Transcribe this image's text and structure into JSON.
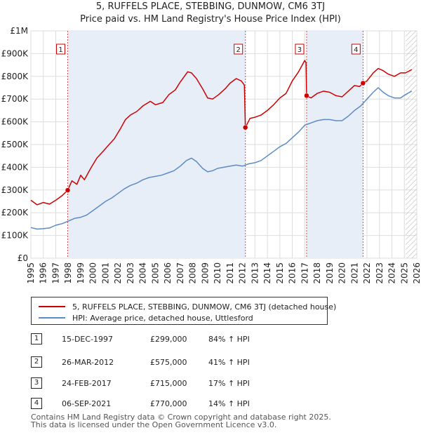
{
  "chart_data": {
    "type": "line",
    "title": "5, RUFFELS PLACE, STEBBING, DUNMOW, CM6 3TJ",
    "subtitle": "Price paid vs. HM Land Registry's House Price Index (HPI)",
    "x_range": [
      1995,
      2026
    ],
    "y_range": [
      0,
      1000000
    ],
    "x_ticks": [
      "1995",
      "1996",
      "1997",
      "1998",
      "1999",
      "2000",
      "2001",
      "2002",
      "2003",
      "2004",
      "2005",
      "2006",
      "2007",
      "2008",
      "2009",
      "2010",
      "2011",
      "2012",
      "2013",
      "2014",
      "2015",
      "2016",
      "2017",
      "2018",
      "2019",
      "2020",
      "2021",
      "2022",
      "2023",
      "2024",
      "2025",
      "2026"
    ],
    "y_ticks": [
      {
        "value": 0,
        "label": "£0"
      },
      {
        "value": 100000,
        "label": "£100K"
      },
      {
        "value": 200000,
        "label": "£200K"
      },
      {
        "value": 300000,
        "label": "£300K"
      },
      {
        "value": 400000,
        "label": "£400K"
      },
      {
        "value": 500000,
        "label": "£500K"
      },
      {
        "value": 600000,
        "label": "£600K"
      },
      {
        "value": 700000,
        "label": "£700K"
      },
      {
        "value": 800000,
        "label": "£800K"
      },
      {
        "value": 900000,
        "label": "£900K"
      },
      {
        "value": 1000000,
        "label": "£1M"
      }
    ],
    "projection_start": 2025.1,
    "series": [
      {
        "name": "5, RUFFELS PLACE, STEBBING, DUNMOW, CM6 3TJ (detached house)",
        "color": "#cc0000",
        "points": [
          [
            1995.0,
            255000
          ],
          [
            1995.5,
            235000
          ],
          [
            1996.0,
            245000
          ],
          [
            1996.5,
            238000
          ],
          [
            1997.0,
            255000
          ],
          [
            1997.5,
            275000
          ],
          [
            1997.96,
            299000
          ],
          [
            1998.3,
            340000
          ],
          [
            1998.7,
            325000
          ],
          [
            1999.0,
            365000
          ],
          [
            1999.3,
            345000
          ],
          [
            1999.8,
            395000
          ],
          [
            2000.3,
            440000
          ],
          [
            2000.8,
            470000
          ],
          [
            2001.2,
            495000
          ],
          [
            2001.7,
            525000
          ],
          [
            2002.2,
            570000
          ],
          [
            2002.6,
            610000
          ],
          [
            2003.0,
            630000
          ],
          [
            2003.5,
            645000
          ],
          [
            2004.0,
            670000
          ],
          [
            2004.6,
            690000
          ],
          [
            2005.0,
            675000
          ],
          [
            2005.6,
            685000
          ],
          [
            2006.1,
            720000
          ],
          [
            2006.6,
            740000
          ],
          [
            2007.0,
            775000
          ],
          [
            2007.6,
            820000
          ],
          [
            2007.9,
            815000
          ],
          [
            2008.3,
            790000
          ],
          [
            2008.8,
            745000
          ],
          [
            2009.2,
            705000
          ],
          [
            2009.6,
            700000
          ],
          [
            2010.1,
            720000
          ],
          [
            2010.6,
            745000
          ],
          [
            2011.0,
            770000
          ],
          [
            2011.5,
            790000
          ],
          [
            2011.9,
            780000
          ],
          [
            2012.1,
            765000
          ],
          [
            2012.15,
            760000
          ],
          [
            2012.23,
            575000
          ],
          [
            2012.6,
            615000
          ],
          [
            2013.0,
            620000
          ],
          [
            2013.5,
            630000
          ],
          [
            2014.0,
            650000
          ],
          [
            2014.5,
            675000
          ],
          [
            2015.0,
            705000
          ],
          [
            2015.5,
            725000
          ],
          [
            2016.0,
            780000
          ],
          [
            2016.5,
            820000
          ],
          [
            2016.8,
            850000
          ],
          [
            2017.0,
            870000
          ],
          [
            2017.1,
            860000
          ],
          [
            2017.15,
            715000
          ],
          [
            2017.5,
            705000
          ],
          [
            2018.0,
            725000
          ],
          [
            2018.5,
            735000
          ],
          [
            2019.0,
            730000
          ],
          [
            2019.5,
            715000
          ],
          [
            2020.0,
            710000
          ],
          [
            2020.5,
            735000
          ],
          [
            2021.0,
            760000
          ],
          [
            2021.4,
            755000
          ],
          [
            2021.68,
            770000
          ],
          [
            2022.0,
            780000
          ],
          [
            2022.5,
            815000
          ],
          [
            2022.9,
            835000
          ],
          [
            2023.3,
            825000
          ],
          [
            2023.7,
            810000
          ],
          [
            2024.2,
            800000
          ],
          [
            2024.7,
            815000
          ],
          [
            2025.1,
            815000
          ],
          [
            2025.6,
            830000
          ]
        ]
      },
      {
        "name": "HPI: Average price, detached house, Uttlesford",
        "color": "#5b8bc4",
        "points": [
          [
            1995.0,
            135000
          ],
          [
            1995.5,
            128000
          ],
          [
            1996.0,
            130000
          ],
          [
            1996.5,
            133000
          ],
          [
            1997.0,
            145000
          ],
          [
            1997.5,
            152000
          ],
          [
            1998.0,
            163000
          ],
          [
            1998.5,
            175000
          ],
          [
            1999.0,
            180000
          ],
          [
            1999.5,
            190000
          ],
          [
            2000.0,
            210000
          ],
          [
            2000.5,
            230000
          ],
          [
            2001.0,
            250000
          ],
          [
            2001.5,
            265000
          ],
          [
            2002.0,
            285000
          ],
          [
            2002.5,
            305000
          ],
          [
            2003.0,
            320000
          ],
          [
            2003.5,
            330000
          ],
          [
            2004.0,
            345000
          ],
          [
            2004.5,
            355000
          ],
          [
            2005.0,
            360000
          ],
          [
            2005.5,
            365000
          ],
          [
            2006.0,
            375000
          ],
          [
            2006.5,
            385000
          ],
          [
            2007.0,
            405000
          ],
          [
            2007.5,
            430000
          ],
          [
            2007.9,
            440000
          ],
          [
            2008.3,
            425000
          ],
          [
            2008.8,
            395000
          ],
          [
            2009.2,
            380000
          ],
          [
            2009.6,
            385000
          ],
          [
            2010.0,
            395000
          ],
          [
            2010.5,
            400000
          ],
          [
            2011.0,
            405000
          ],
          [
            2011.5,
            410000
          ],
          [
            2012.0,
            405000
          ],
          [
            2012.5,
            415000
          ],
          [
            2013.0,
            420000
          ],
          [
            2013.5,
            430000
          ],
          [
            2014.0,
            450000
          ],
          [
            2014.5,
            470000
          ],
          [
            2015.0,
            490000
          ],
          [
            2015.5,
            505000
          ],
          [
            2016.0,
            530000
          ],
          [
            2016.5,
            555000
          ],
          [
            2017.0,
            585000
          ],
          [
            2017.5,
            595000
          ],
          [
            2018.0,
            605000
          ],
          [
            2018.5,
            610000
          ],
          [
            2019.0,
            610000
          ],
          [
            2019.5,
            605000
          ],
          [
            2020.0,
            605000
          ],
          [
            2020.5,
            625000
          ],
          [
            2021.0,
            650000
          ],
          [
            2021.5,
            670000
          ],
          [
            2022.0,
            700000
          ],
          [
            2022.5,
            730000
          ],
          [
            2022.9,
            750000
          ],
          [
            2023.3,
            730000
          ],
          [
            2023.7,
            715000
          ],
          [
            2024.2,
            705000
          ],
          [
            2024.7,
            705000
          ],
          [
            2025.1,
            720000
          ],
          [
            2025.6,
            735000
          ]
        ]
      }
    ],
    "sales": [
      {
        "label": "1",
        "x": 1997.96,
        "y": 299000,
        "date": "15-DEC-1997",
        "price": "£299,000",
        "hpi": "84% ↑ HPI"
      },
      {
        "label": "2",
        "x": 2012.23,
        "y": 575000,
        "date": "26-MAR-2012",
        "price": "£575,000",
        "hpi": "41% ↑ HPI"
      },
      {
        "label": "3",
        "x": 2017.15,
        "y": 715000,
        "date": "24-FEB-2017",
        "price": "£715,000",
        "hpi": "17% ↑ HPI"
      },
      {
        "label": "4",
        "x": 2021.68,
        "y": 770000,
        "date": "06-SEP-2021",
        "price": "£770,000",
        "hpi": "14% ↑ HPI"
      }
    ]
  },
  "legend": {
    "property_label": "5, RUFFELS PLACE, STEBBING, DUNMOW, CM6 3TJ (detached house)",
    "hpi_label": "HPI: Average price, detached house, Uttlesford"
  },
  "colors": {
    "property": "#cc0000",
    "hpi": "#5b8bc4",
    "shade": "#e8eef8"
  },
  "footer": {
    "line1": "Contains HM Land Registry data © Crown copyright and database right 2025.",
    "line2": "This data is licensed under the Open Government Licence v3.0."
  }
}
